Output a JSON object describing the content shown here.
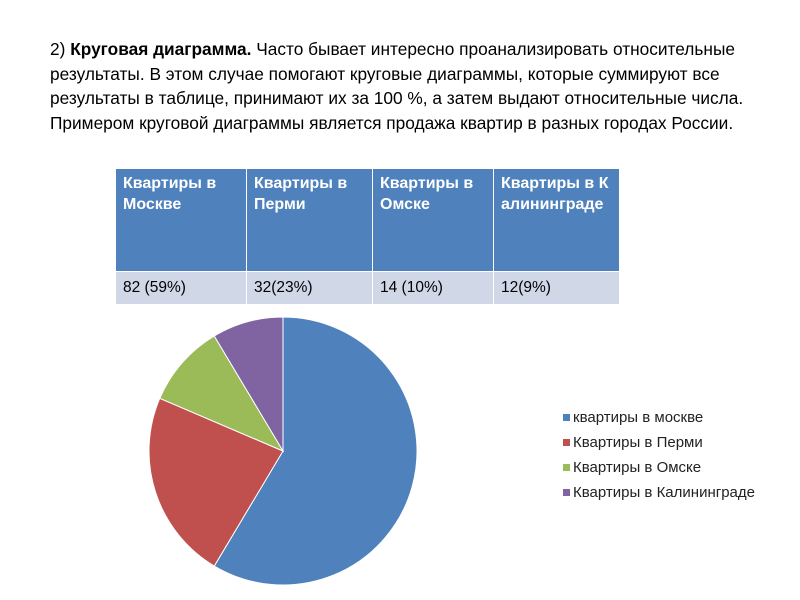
{
  "intro": {
    "number": "2)",
    "bold": "Круговая диаграмма.",
    "text": " Часто бывает интересно проанализировать относительные результаты. В этом случае помогают круговые диаграммы, которые суммируют все результаты в таблице, принимают их за 100 %, а затем выдают относительные числа. Примером круговой диаграммы является  продажа квартир в разных городах России."
  },
  "table": {
    "headers": [
      "Квартиры в Москве",
      "Квартиры в Перми",
      "Квартиры в Омске",
      "Квартиры в Калининграде"
    ],
    "row": [
      "82 (59%)",
      "32(23%)",
      "14 (10%)",
      "12(9%)"
    ]
  },
  "chart_data": {
    "type": "pie",
    "title": "",
    "categories": [
      "квартиры в москве",
      "Квартиры в Перми",
      "Квартиры в Омске",
      "Квартиры в Калининграде"
    ],
    "values": [
      82,
      32,
      14,
      12
    ],
    "colors": [
      "#4f81bd",
      "#c0504d",
      "#9bbb59",
      "#8064a2"
    ],
    "legend": "right"
  }
}
